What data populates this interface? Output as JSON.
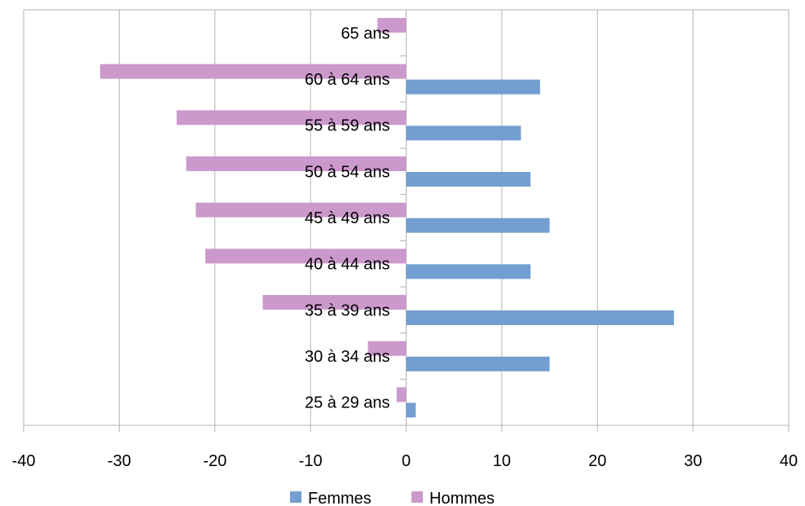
{
  "chart_data": {
    "type": "bar",
    "orientation": "horizontal",
    "categories": [
      "25 à 29 ans",
      "30 à 34 ans",
      "35 à 39 ans",
      "40 à 44 ans",
      "45 à 49 ans",
      "50 à 54 ans",
      "55 à 59 ans",
      "60 à 64 ans",
      "65 ans"
    ],
    "series": [
      {
        "name": "Femmes",
        "color": "#729fcf",
        "values": [
          1,
          15,
          28,
          13,
          15,
          13,
          12,
          14,
          0
        ]
      },
      {
        "name": "Hommes",
        "color": "#cc99cc",
        "values": [
          -1,
          -4,
          -15,
          -21,
          -22,
          -23,
          -24,
          -32,
          -3
        ]
      }
    ],
    "xlim": [
      -40,
      40
    ],
    "xticks": [
      -40,
      -30,
      -20,
      -10,
      0,
      10,
      20,
      30,
      40
    ],
    "xtick_labels": [
      "-40",
      "-30",
      "-20",
      "-10",
      "0",
      "10",
      "20",
      "30",
      "40"
    ],
    "grid": true,
    "legend_position": "bottom",
    "title": "",
    "xlabel": "",
    "ylabel": ""
  }
}
